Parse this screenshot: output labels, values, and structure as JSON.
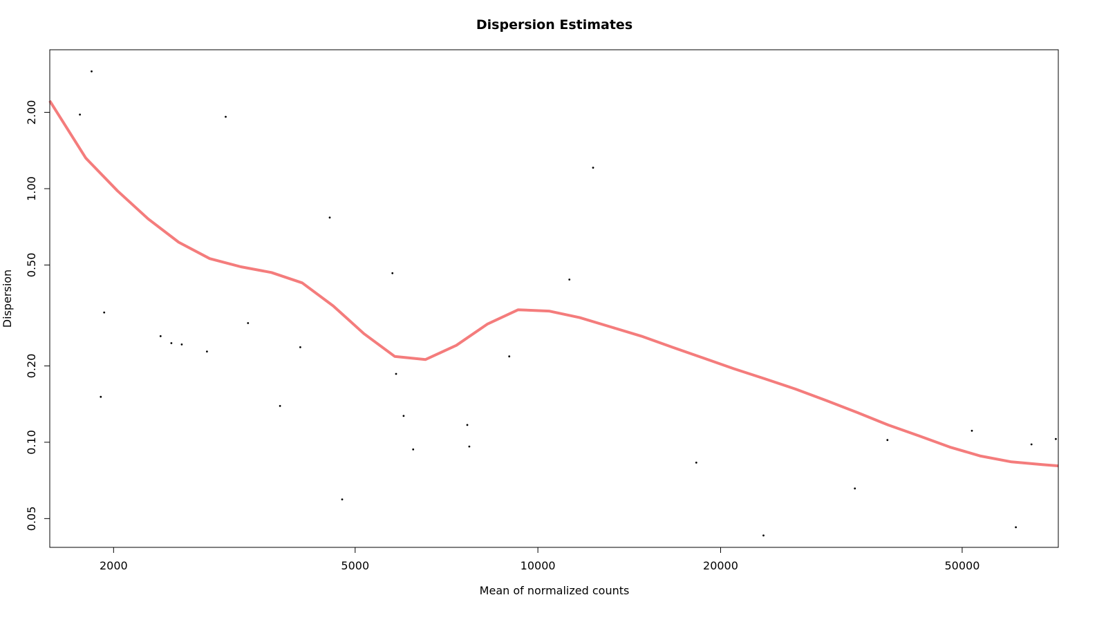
{
  "chart_data": {
    "type": "scatter",
    "title": "Dispersion Estimates",
    "xlabel": "Mean of normalized counts",
    "ylabel": "Dispersion",
    "x_scale": "log",
    "y_scale": "log",
    "xlim": [
      1570,
      72000
    ],
    "ylim": [
      0.0385,
      3.53
    ],
    "x_ticks": [
      {
        "value": 2000,
        "label": "2000"
      },
      {
        "value": 5000,
        "label": "5000"
      },
      {
        "value": 10000,
        "label": "10000"
      },
      {
        "value": 20000,
        "label": "20000"
      },
      {
        "value": 50000,
        "label": "50000"
      }
    ],
    "y_ticks": [
      {
        "value": 0.05,
        "label": "0.05"
      },
      {
        "value": 0.1,
        "label": "0.10"
      },
      {
        "value": 0.2,
        "label": "0.20"
      },
      {
        "value": 0.5,
        "label": "0.50"
      },
      {
        "value": 1.0,
        "label": "1.00"
      },
      {
        "value": 2.0,
        "label": "2.00"
      }
    ],
    "grid": false,
    "fit_color": "#f47c7c",
    "point_color": "#000000",
    "points": [
      {
        "x": 1760,
        "y": 1.96
      },
      {
        "x": 1840,
        "y": 2.9
      },
      {
        "x": 1905,
        "y": 0.151
      },
      {
        "x": 1930,
        "y": 0.325
      },
      {
        "x": 2390,
        "y": 0.262
      },
      {
        "x": 2490,
        "y": 0.246
      },
      {
        "x": 2590,
        "y": 0.243
      },
      {
        "x": 2850,
        "y": 0.228
      },
      {
        "x": 3060,
        "y": 1.92
      },
      {
        "x": 3330,
        "y": 0.295
      },
      {
        "x": 3760,
        "y": 0.139
      },
      {
        "x": 4060,
        "y": 0.237
      },
      {
        "x": 4540,
        "y": 0.769
      },
      {
        "x": 4760,
        "y": 0.0595
      },
      {
        "x": 5760,
        "y": 0.464
      },
      {
        "x": 5840,
        "y": 0.186
      },
      {
        "x": 6010,
        "y": 0.127
      },
      {
        "x": 6230,
        "y": 0.0937
      },
      {
        "x": 7650,
        "y": 0.117
      },
      {
        "x": 7710,
        "y": 0.0962
      },
      {
        "x": 8970,
        "y": 0.218
      },
      {
        "x": 11270,
        "y": 0.438
      },
      {
        "x": 12330,
        "y": 1.21
      },
      {
        "x": 18240,
        "y": 0.0831
      },
      {
        "x": 23530,
        "y": 0.0429
      },
      {
        "x": 33280,
        "y": 0.0657
      },
      {
        "x": 37660,
        "y": 0.102
      },
      {
        "x": 51880,
        "y": 0.111
      },
      {
        "x": 61290,
        "y": 0.0462
      },
      {
        "x": 65030,
        "y": 0.0981
      },
      {
        "x": 71330,
        "y": 0.103
      }
    ],
    "fit_curve": [
      {
        "x": 1570,
        "y": 2.22
      },
      {
        "x": 1800,
        "y": 1.32
      },
      {
        "x": 2030,
        "y": 0.98
      },
      {
        "x": 2280,
        "y": 0.76
      },
      {
        "x": 2560,
        "y": 0.615
      },
      {
        "x": 2880,
        "y": 0.53
      },
      {
        "x": 3240,
        "y": 0.492
      },
      {
        "x": 3640,
        "y": 0.467
      },
      {
        "x": 4090,
        "y": 0.425
      },
      {
        "x": 4600,
        "y": 0.345
      },
      {
        "x": 5170,
        "y": 0.268
      },
      {
        "x": 5810,
        "y": 0.218
      },
      {
        "x": 6530,
        "y": 0.212
      },
      {
        "x": 7340,
        "y": 0.241
      },
      {
        "x": 8250,
        "y": 0.292
      },
      {
        "x": 9280,
        "y": 0.333
      },
      {
        "x": 10430,
        "y": 0.329
      },
      {
        "x": 11720,
        "y": 0.31
      },
      {
        "x": 13180,
        "y": 0.285
      },
      {
        "x": 14810,
        "y": 0.262
      },
      {
        "x": 16650,
        "y": 0.237
      },
      {
        "x": 18710,
        "y": 0.215
      },
      {
        "x": 21030,
        "y": 0.195
      },
      {
        "x": 23640,
        "y": 0.178
      },
      {
        "x": 26580,
        "y": 0.162
      },
      {
        "x": 29880,
        "y": 0.146
      },
      {
        "x": 33590,
        "y": 0.131
      },
      {
        "x": 37750,
        "y": 0.117
      },
      {
        "x": 42440,
        "y": 0.106
      },
      {
        "x": 47710,
        "y": 0.0957
      },
      {
        "x": 53630,
        "y": 0.0882
      },
      {
        "x": 60280,
        "y": 0.0837
      },
      {
        "x": 67760,
        "y": 0.0816
      },
      {
        "x": 72000,
        "y": 0.0807
      }
    ]
  }
}
